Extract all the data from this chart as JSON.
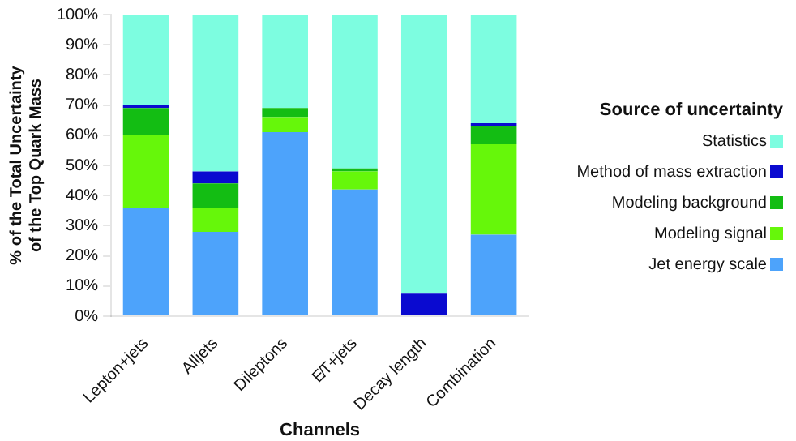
{
  "chart_data": {
    "type": "bar",
    "stacked": true,
    "xlabel": "Channels",
    "ylabel": "% of the Total Uncertainty of the Top Quark Mass",
    "legend_title": "Source of uncertainty",
    "legend": "right",
    "grid": false,
    "categories": [
      "Lepton+jets",
      "Alljets",
      "Dileptons",
      "E̸T+jets",
      "Decay length",
      "Combination"
    ],
    "ylim": [
      0,
      100
    ],
    "yticks": [
      {
        "value": 0,
        "label": "0%"
      },
      {
        "value": 10,
        "label": "10%"
      },
      {
        "value": 20,
        "label": "20%"
      },
      {
        "value": 30,
        "label": "30%"
      },
      {
        "value": 40,
        "label": "40%"
      },
      {
        "value": 50,
        "label": "50%"
      },
      {
        "value": 60,
        "label": "60%"
      },
      {
        "value": 70,
        "label": "70%"
      },
      {
        "value": 80,
        "label": "80%"
      },
      {
        "value": 90,
        "label": "90%"
      },
      {
        "value": 100,
        "label": "100%"
      }
    ],
    "series": [
      {
        "name": "Jet energy scale",
        "color": "#4da3fb",
        "values": [
          36,
          28,
          61,
          42,
          0,
          27
        ]
      },
      {
        "name": "Modeling signal",
        "color": "#66f70a",
        "values": [
          24,
          8,
          5,
          6,
          0,
          30
        ]
      },
      {
        "name": "Modeling background",
        "color": "#13bd13",
        "values": [
          9,
          8,
          3,
          1,
          0,
          6
        ]
      },
      {
        "name": "Method of mass extraction",
        "color": "#0a0ad0",
        "values": [
          1,
          4,
          0,
          0,
          7.5,
          1
        ]
      },
      {
        "name": "Statistics",
        "color": "#7dfde0",
        "values": [
          30,
          52,
          31,
          51,
          92.5,
          36
        ]
      }
    ]
  }
}
